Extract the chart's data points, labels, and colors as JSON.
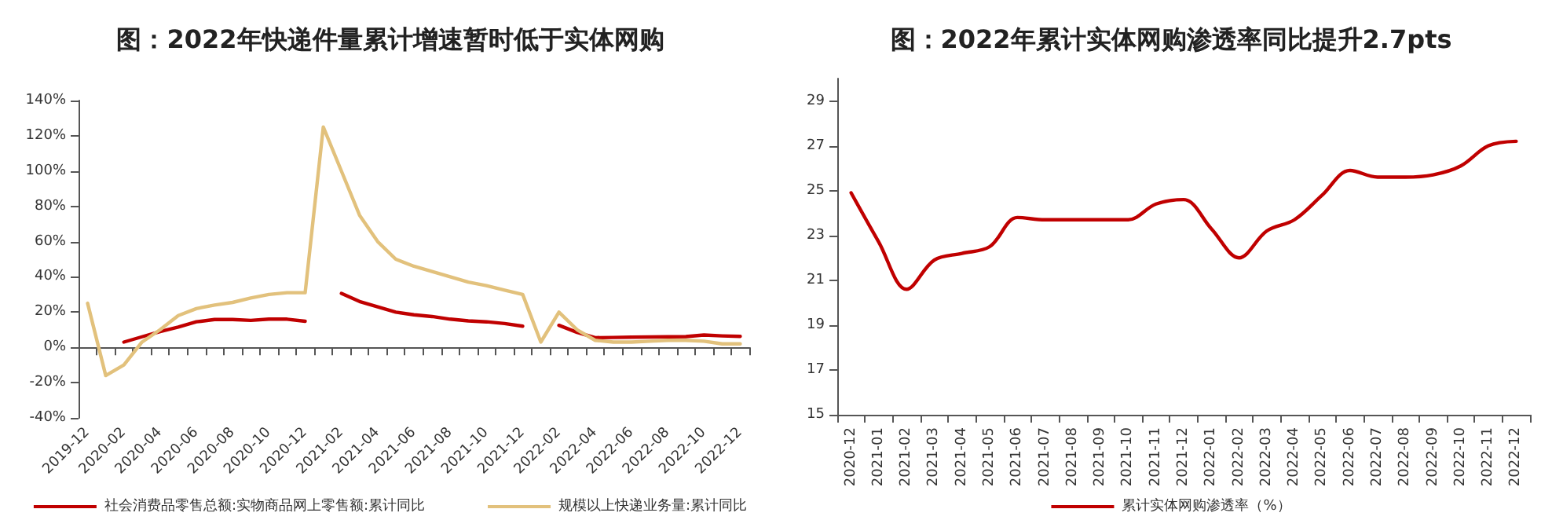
{
  "chart_data": [
    {
      "type": "line",
      "title": "图：2022年快递件量累计增速暂时低于实体网购",
      "categories": [
        "2019-12",
        null,
        "2020-02",
        null,
        "2020-04",
        null,
        "2020-06",
        null,
        "2020-08",
        null,
        "2020-10",
        null,
        "2020-12",
        null,
        "2021-02",
        null,
        "2021-04",
        null,
        "2021-06",
        null,
        "2021-08",
        null,
        "2021-10",
        null,
        "2021-12",
        null,
        "2022-02",
        null,
        "2022-04",
        null,
        "2022-06",
        null,
        "2022-08",
        null,
        "2022-10",
        null,
        "2022-12"
      ],
      "series": [
        {
          "name": "社会消费品零售总额:实物商品网上零售额:累计同比",
          "color": "#c00000",
          "values": [
            null,
            null,
            3,
            6,
            9,
            11.5,
            14.5,
            15.8,
            15.8,
            15.3,
            16,
            16,
            14.8,
            null,
            30.6,
            26,
            23,
            20,
            18.5,
            17.5,
            16,
            15,
            14.5,
            13.5,
            12,
            null,
            12.5,
            8.5,
            5.5,
            5.6,
            5.8,
            5.9,
            6,
            6.1,
            7,
            6.5,
            6.2
          ]
        },
        {
          "name": "规模以上快递业务量:累计同比",
          "color": "#e2c17c",
          "values": [
            25,
            -16,
            -10,
            3,
            10,
            18,
            22,
            24,
            25.5,
            28,
            30,
            31,
            31,
            125,
            100,
            75,
            60,
            50,
            46,
            43,
            40,
            37,
            35,
            32.5,
            30,
            3,
            20,
            10,
            4,
            3,
            3,
            3.5,
            4,
            4,
            3.5,
            2,
            2
          ]
        }
      ],
      "ylim": [
        -40,
        140
      ],
      "yticks": [
        {
          "value": -40,
          "label": "-40%"
        },
        {
          "value": -20,
          "label": "-20%"
        },
        {
          "value": 0,
          "label": "0%"
        },
        {
          "value": 20,
          "label": "20%"
        },
        {
          "value": 40,
          "label": "40%"
        },
        {
          "value": 60,
          "label": "60%"
        },
        {
          "value": 80,
          "label": "80%"
        },
        {
          "value": 100,
          "label": "100%"
        },
        {
          "value": 120,
          "label": "120%"
        },
        {
          "value": 140,
          "label": "140%"
        }
      ],
      "legend": "bottom",
      "marker": "none"
    },
    {
      "type": "line",
      "title": "图：2022年累计实体网购渗透率同比提升2.7pts",
      "categories": [
        "2020-12",
        "2021-01",
        "2021-02",
        "2021-03",
        "2021-04",
        "2021-05",
        "2021-06",
        "2021-07",
        "2021-08",
        "2021-09",
        "2021-10",
        "2021-11",
        "2021-12",
        "2022-01",
        "2022-02",
        "2022-03",
        "2022-04",
        "2022-05",
        "2022-06",
        "2022-07",
        "2022-08",
        "2022-09",
        "2022-10",
        "2022-11",
        "2022-12"
      ],
      "series": [
        {
          "name": "累计实体网购渗透率（%）",
          "color": "#c00000",
          "values": [
            24.9,
            22.7,
            20.6,
            21.9,
            22.2,
            22.5,
            23.8,
            23.7,
            23.7,
            23.7,
            23.7,
            24.4,
            24.6,
            23.3,
            22,
            23.2,
            23.7,
            24.8,
            25.9,
            25.6,
            25.6,
            25.7,
            26.1,
            27,
            27.2
          ]
        }
      ],
      "ylim": [
        15,
        30
      ],
      "yticks": [
        15,
        17,
        19,
        21,
        23,
        25,
        27,
        29
      ],
      "legend": "bottom",
      "marker": "none"
    }
  ]
}
